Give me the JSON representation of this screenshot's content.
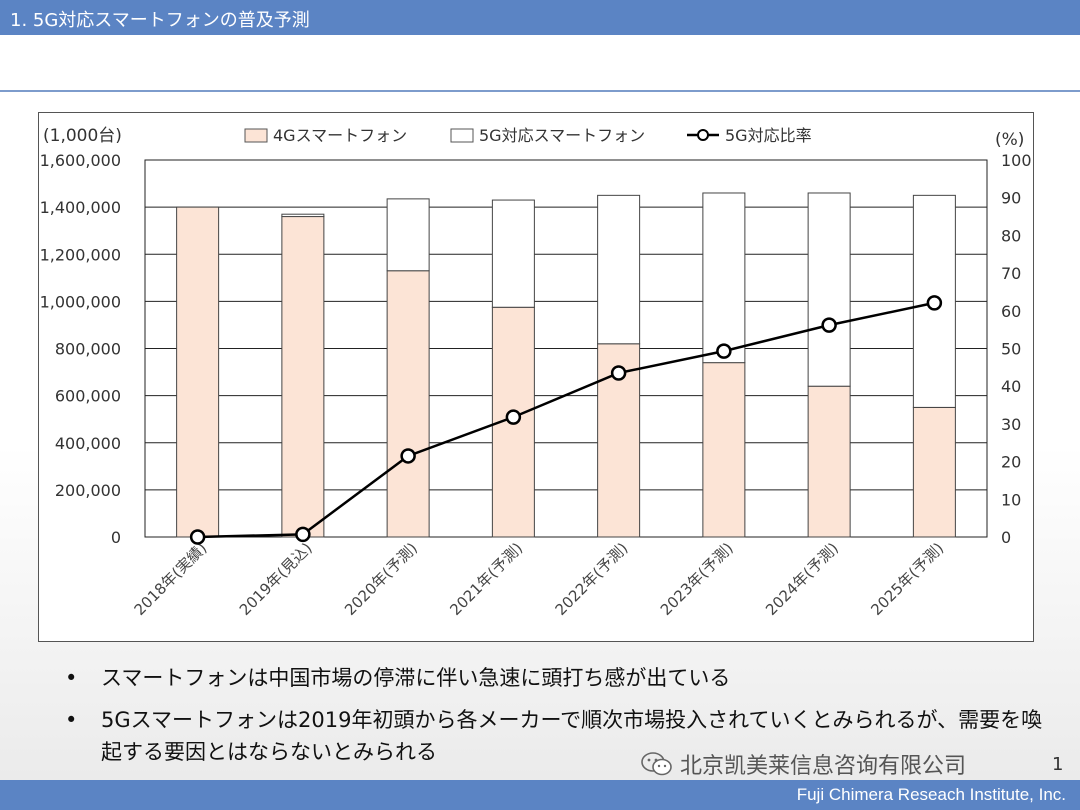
{
  "header": {
    "title": "1. 5G対応スマートフォンの普及予測"
  },
  "chart_data": {
    "type": "bar",
    "stacked": true,
    "categories": [
      "2018年(実績)",
      "2019年(見込)",
      "2020年(予測)",
      "2021年(予測)",
      "2022年(予測)",
      "2023年(予測)",
      "2024年(予測)",
      "2025年(予測)"
    ],
    "series": [
      {
        "name": "4Gスマートフォン",
        "type": "bar",
        "axis": "left",
        "color": "#fce4d6",
        "values": [
          1400000,
          1360000,
          1130000,
          975000,
          820000,
          740000,
          640000,
          550000
        ]
      },
      {
        "name": "5G対応スマートフォン",
        "type": "bar",
        "axis": "left",
        "color": "#ffffff",
        "values": [
          0,
          10000,
          305000,
          455000,
          630000,
          720000,
          820000,
          900000
        ]
      },
      {
        "name": "5G対応比率",
        "type": "line",
        "axis": "right",
        "color": "#000000",
        "values": [
          0,
          0.7,
          21.5,
          31.8,
          43.5,
          49.3,
          56.2,
          62.1
        ]
      }
    ],
    "left_axis": {
      "unit": "(1,000台)",
      "min": 0,
      "max": 1600000,
      "step": 200000,
      "tick_labels": [
        "0",
        "200,000",
        "400,000",
        "600,000",
        "800,000",
        "1,000,000",
        "1,200,000",
        "1,400,000",
        "1,600,000"
      ]
    },
    "right_axis": {
      "unit": "(%)",
      "min": 0,
      "max": 100,
      "step": 10,
      "tick_labels": [
        "0",
        "10",
        "20",
        "30",
        "40",
        "50",
        "60",
        "70",
        "80",
        "90",
        "100"
      ]
    },
    "grid": true,
    "legend_position": "top"
  },
  "bullets": [
    "スマートフォンは中国市場の停滞に伴い急速に頭打ち感が出ている",
    "5Gスマートフォンは2019年初頭から各メーカーで順次市場投入されていくとみられるが、需要を喚起する要因とはならないとみられる"
  ],
  "bullet_symbol": "•",
  "watermark": {
    "text": "北京凯美莱信息咨询有限公司",
    "icon": "wechat-icon"
  },
  "page_number": "1",
  "footer": {
    "text": "Fuji Chimera Reseach Institute, Inc."
  },
  "colors": {
    "header": "#5b84c4",
    "footer": "#5b84c4",
    "bar_4g": "#fce4d6",
    "bar_5g": "#ffffff"
  }
}
